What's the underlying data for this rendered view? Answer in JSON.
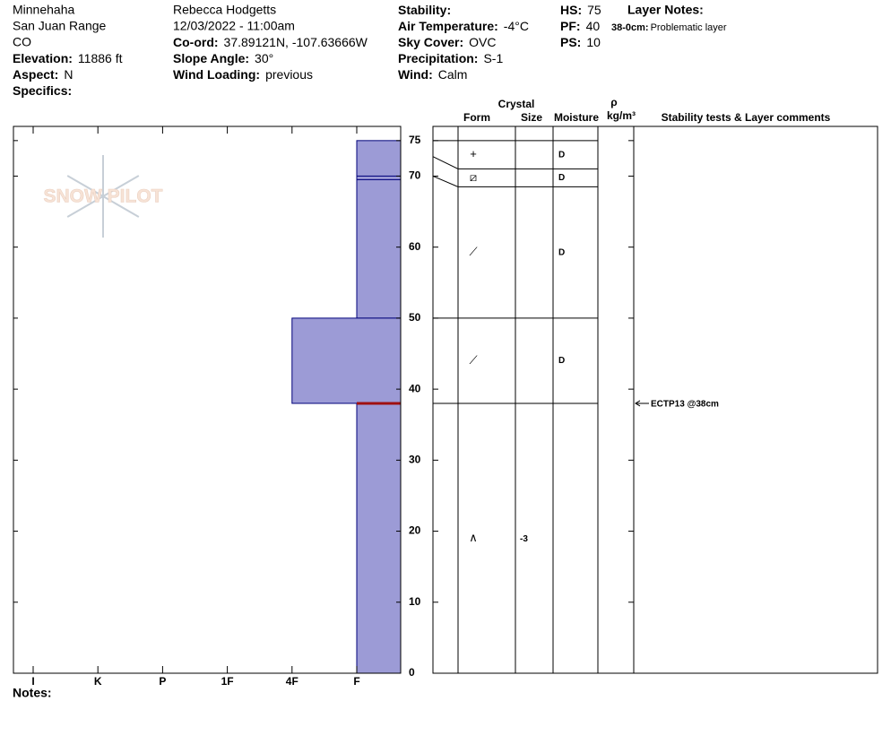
{
  "header": {
    "columns": [
      [
        "Minnehaha",
        "San Juan Range",
        "CO",
        {
          "label": "Elevation:",
          "value": "11886 ft"
        },
        {
          "label": "Aspect:",
          "value": "N"
        },
        {
          "label": "Specifics:"
        }
      ],
      [
        "Rebecca Hodgetts",
        "12/03/2022 - 11:00am",
        {
          "label": "Co-ord:",
          "value": "37.89121N, -107.63666W"
        },
        {
          "label": "Slope Angle:",
          "value": "30°"
        },
        {
          "label": "Wind Loading:",
          "value": "previous"
        }
      ],
      [
        {
          "label": "Stability:"
        },
        {
          "label": "Air Temperature:",
          "value": "-4°C"
        },
        {
          "label": "Sky Cover:",
          "value": "OVC"
        },
        {
          "label": "Precipitation:",
          "value": "S-1"
        },
        {
          "label": "Wind:",
          "value": "Calm"
        }
      ],
      [
        {
          "label": "HS:",
          "value": "75"
        },
        {
          "label": "PF:",
          "value": "40"
        },
        {
          "label": "PS:",
          "value": "10"
        }
      ]
    ],
    "layer_notes_title": "Layer Notes:",
    "layer_notes": [
      {
        "label": "38-0cm:",
        "value": "Problematic layer"
      }
    ]
  },
  "chart_data": {
    "type": "snow-profile",
    "watermark": "SNOW PILOT",
    "hardness_categories": [
      "I",
      "K",
      "P",
      "1F",
      "4F",
      "F"
    ],
    "ylim": [
      0,
      77
    ],
    "yticks": [
      0,
      10,
      20,
      30,
      40,
      50,
      60,
      70,
      75
    ],
    "bar_color": "#9c9bd6",
    "edge_color": "#00007a",
    "problem_color": "#a01010",
    "layers": [
      {
        "top": 75,
        "bottom": 70,
        "hardness": "F",
        "form": "+",
        "moisture": "D"
      },
      {
        "top": 70,
        "bottom": 69.5,
        "hardness": "F",
        "form": "⧄",
        "moisture": "D"
      },
      {
        "top": 69.5,
        "bottom": 50,
        "hardness": "F",
        "form": "⟋",
        "moisture": "D"
      },
      {
        "top": 50,
        "bottom": 38,
        "hardness": "4F",
        "form": "⟋",
        "moisture": "D"
      },
      {
        "top": 38,
        "bottom": 0,
        "hardness": "F",
        "form": "∧",
        "size": "-3",
        "problematic": true
      }
    ],
    "table_headers": {
      "crystal": "Crystal",
      "form": "Form",
      "size": "Size",
      "moisture": "Moisture",
      "density_symbol": "ρ",
      "density_unit": "kg/m³",
      "comments": "Stability tests & Layer comments"
    },
    "tests": [
      {
        "depth": 38,
        "label": "ECTP13 @38cm"
      }
    ],
    "notes_label": "Notes:"
  }
}
